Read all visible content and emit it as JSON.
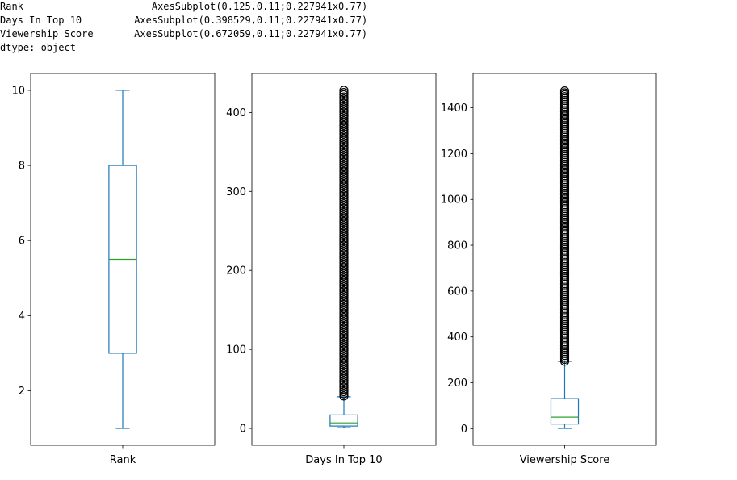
{
  "console_output": {
    "lines": [
      {
        "name": "Rank",
        "value": "AxesSubplot(0.125,0.11;0.227941x0.77)"
      },
      {
        "name": "Days In Top 10",
        "value": "AxesSubplot(0.398529,0.11;0.227941x0.77)"
      },
      {
        "name": "Viewership Score",
        "value": "AxesSubplot(0.672059,0.11;0.227941x0.77)"
      }
    ],
    "dtype_line": "dtype: object"
  },
  "colors": {
    "box": "#1f77b4",
    "median": "#2ca02c",
    "flier": "#000000",
    "axes": "#000000"
  },
  "chart_data": [
    {
      "type": "box",
      "category": "Rank",
      "ylim": [
        0.55,
        10.45
      ],
      "yticks": [
        2,
        4,
        6,
        8,
        10
      ],
      "stats": {
        "whislo": 1,
        "q1": 3,
        "med": 5.5,
        "q3": 8,
        "whishi": 10
      },
      "fliers": {
        "count": 0,
        "range": null
      }
    },
    {
      "type": "box",
      "category": "Days In Top 10",
      "ylim": [
        -21.4,
        449.4
      ],
      "yticks": [
        0,
        100,
        200,
        300,
        400
      ],
      "stats": {
        "whislo": 1,
        "q1": 3,
        "med": 7,
        "q3": 17,
        "whishi": 40
      },
      "fliers": {
        "count": "dense",
        "range": [
          41,
          428
        ]
      }
    },
    {
      "type": "box",
      "category": "Viewership Score",
      "ylim": [
        -72.8,
        1550
      ],
      "yticks": [
        0,
        200,
        400,
        600,
        800,
        1000,
        1200,
        1400
      ],
      "stats": {
        "whislo": 1.0,
        "q1": 20,
        "med": 50,
        "q3": 131,
        "whishi": 293
      },
      "fliers": {
        "count": "dense",
        "range": [
          294,
          1474
        ]
      }
    }
  ]
}
